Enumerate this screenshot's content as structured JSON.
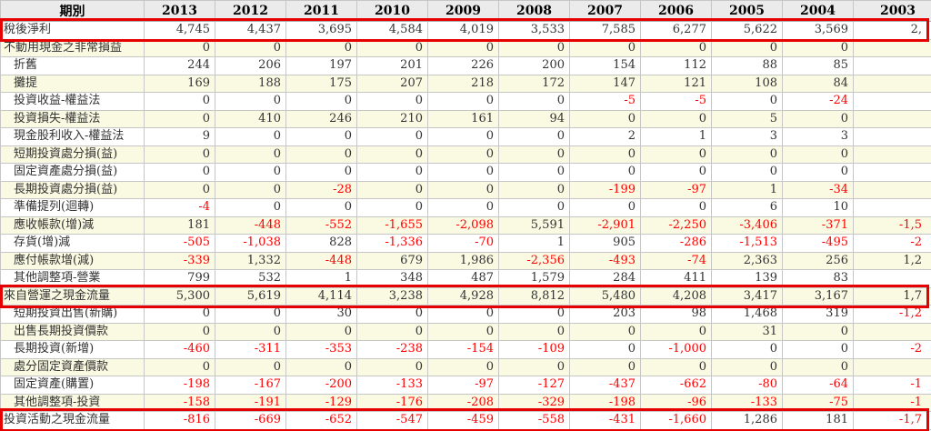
{
  "header": {
    "period_label": "期別",
    "years": [
      "2013",
      "2012",
      "2011",
      "2010",
      "2009",
      "2008",
      "2007",
      "2006",
      "2005",
      "2004",
      "2003"
    ]
  },
  "rows": [
    {
      "label": "稅後淨利",
      "indent": false,
      "highlighted": true,
      "values": [
        "4,745",
        "4,437",
        "3,695",
        "4,584",
        "4,019",
        "3,533",
        "7,585",
        "6,277",
        "5,622",
        "3,569",
        "2,"
      ]
    },
    {
      "label": "不動用現金之非常損益",
      "indent": false,
      "highlighted": false,
      "values": [
        "0",
        "0",
        "0",
        "0",
        "0",
        "0",
        "0",
        "0",
        "0",
        "0",
        ""
      ]
    },
    {
      "label": "折舊",
      "indent": true,
      "highlighted": false,
      "values": [
        "244",
        "206",
        "197",
        "201",
        "226",
        "200",
        "154",
        "112",
        "88",
        "85",
        ""
      ]
    },
    {
      "label": "攤提",
      "indent": true,
      "highlighted": false,
      "values": [
        "169",
        "188",
        "175",
        "207",
        "218",
        "172",
        "147",
        "121",
        "108",
        "84",
        ""
      ]
    },
    {
      "label": "投資收益-權益法",
      "indent": true,
      "highlighted": false,
      "values": [
        "0",
        "0",
        "0",
        "0",
        "0",
        "0",
        "-5",
        "-5",
        "0",
        "-24",
        ""
      ]
    },
    {
      "label": "投資損失-權益法",
      "indent": true,
      "highlighted": false,
      "values": [
        "0",
        "410",
        "246",
        "210",
        "161",
        "94",
        "0",
        "0",
        "5",
        "0",
        ""
      ]
    },
    {
      "label": "現金股利收入-權益法",
      "indent": true,
      "highlighted": false,
      "values": [
        "9",
        "0",
        "0",
        "0",
        "0",
        "0",
        "2",
        "1",
        "3",
        "3",
        ""
      ]
    },
    {
      "label": "短期投資處分損(益)",
      "indent": true,
      "highlighted": false,
      "values": [
        "0",
        "0",
        "0",
        "0",
        "0",
        "0",
        "0",
        "0",
        "0",
        "0",
        ""
      ]
    },
    {
      "label": "固定資產處分損(益)",
      "indent": true,
      "highlighted": false,
      "values": [
        "0",
        "0",
        "0",
        "0",
        "0",
        "0",
        "0",
        "0",
        "0",
        "0",
        ""
      ]
    },
    {
      "label": "長期投資處分損(益)",
      "indent": true,
      "highlighted": false,
      "values": [
        "0",
        "0",
        "-28",
        "0",
        "0",
        "0",
        "-199",
        "-97",
        "1",
        "-34",
        ""
      ]
    },
    {
      "label": "準備提列(迴轉)",
      "indent": true,
      "highlighted": false,
      "values": [
        "-4",
        "0",
        "0",
        "0",
        "0",
        "0",
        "0",
        "0",
        "6",
        "10",
        ""
      ]
    },
    {
      "label": "應收帳款(增)減",
      "indent": true,
      "highlighted": false,
      "values": [
        "181",
        "-448",
        "-552",
        "-1,655",
        "-2,098",
        "5,591",
        "-2,901",
        "-2,250",
        "-3,406",
        "-371",
        "-1,5"
      ]
    },
    {
      "label": "存貨(增)減",
      "indent": true,
      "highlighted": false,
      "values": [
        "-505",
        "-1,038",
        "828",
        "-1,336",
        "-70",
        "1",
        "905",
        "-286",
        "-1,513",
        "-495",
        "-2"
      ]
    },
    {
      "label": "應付帳款增(減)",
      "indent": true,
      "highlighted": false,
      "values": [
        "-339",
        "1,332",
        "-448",
        "679",
        "1,986",
        "-2,356",
        "-493",
        "-74",
        "2,363",
        "256",
        "1,2"
      ]
    },
    {
      "label": "其他調整項-營業",
      "indent": true,
      "highlighted": false,
      "values": [
        "799",
        "532",
        "1",
        "348",
        "487",
        "1,579",
        "284",
        "411",
        "139",
        "83",
        ""
      ]
    },
    {
      "label": "來自營運之現金流量",
      "indent": false,
      "highlighted": true,
      "values": [
        "5,300",
        "5,619",
        "4,114",
        "3,238",
        "4,928",
        "8,812",
        "5,480",
        "4,208",
        "3,417",
        "3,167",
        "1,7"
      ]
    },
    {
      "label": "短期投資出售(新購)",
      "indent": true,
      "highlighted": false,
      "values": [
        "0",
        "0",
        "30",
        "0",
        "0",
        "0",
        "203",
        "98",
        "1,468",
        "319",
        "-1,2"
      ]
    },
    {
      "label": "出售長期投資價款",
      "indent": true,
      "highlighted": false,
      "values": [
        "0",
        "0",
        "0",
        "0",
        "0",
        "0",
        "0",
        "0",
        "31",
        "0",
        ""
      ]
    },
    {
      "label": "長期投資(新增)",
      "indent": true,
      "highlighted": false,
      "values": [
        "-460",
        "-311",
        "-353",
        "-238",
        "-154",
        "-109",
        "0",
        "-1,000",
        "0",
        "0",
        "-2"
      ]
    },
    {
      "label": "處分固定資產價款",
      "indent": true,
      "highlighted": false,
      "values": [
        "0",
        "0",
        "0",
        "0",
        "0",
        "0",
        "0",
        "0",
        "0",
        "0",
        ""
      ]
    },
    {
      "label": "固定資產(購置)",
      "indent": true,
      "highlighted": false,
      "values": [
        "-198",
        "-167",
        "-200",
        "-133",
        "-97",
        "-127",
        "-437",
        "-662",
        "-80",
        "-64",
        "-1"
      ]
    },
    {
      "label": "其他調整項-投資",
      "indent": true,
      "highlighted": false,
      "values": [
        "-158",
        "-191",
        "-129",
        "-176",
        "-208",
        "-329",
        "-198",
        "-96",
        "-133",
        "-75",
        "-1"
      ]
    },
    {
      "label": "投資活動之現金流量",
      "indent": false,
      "highlighted": true,
      "values": [
        "-816",
        "-669",
        "-652",
        "-547",
        "-459",
        "-558",
        "-431",
        "-1,660",
        "1,286",
        "181",
        "-1,7"
      ]
    }
  ],
  "colors": {
    "negative_text": "#ff0000",
    "highlight_border": "#e60000",
    "header_bg": "#ebebeb",
    "stripe_bg": "#fafae3",
    "grid_border": "#c6c6c6"
  }
}
